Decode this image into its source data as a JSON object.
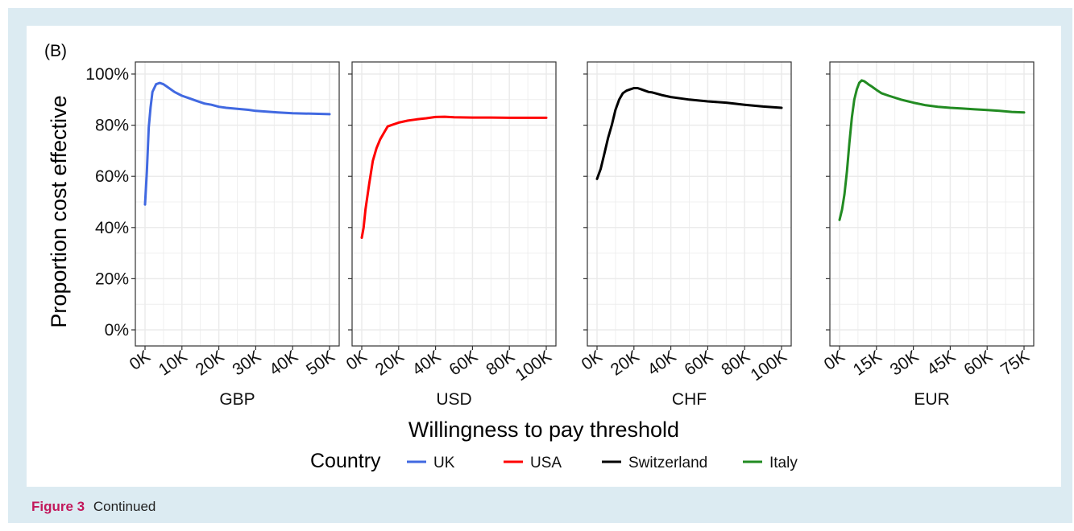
{
  "caption": {
    "label": "Figure 3",
    "text": "Continued"
  },
  "panel_tag": "(B)",
  "colors": {
    "UK": "#4169e1",
    "USA": "#ff0000",
    "Switzerland": "#000000",
    "Italy": "#228b22",
    "grid": "#ebebeb",
    "frame": "#333333",
    "figure_background": "#dcebf2"
  },
  "chart_data": {
    "type": "line",
    "ylabel": "Proportion cost effective",
    "xlabel": "Willingness to pay threshold",
    "ylim": [
      0,
      1
    ],
    "yticks": [
      0,
      0.2,
      0.4,
      0.6,
      0.8,
      1.0
    ],
    "ytick_labels": [
      "0%",
      "20%",
      "40%",
      "60%",
      "80%",
      "100%"
    ],
    "legend": {
      "title": "Country",
      "position": "bottom",
      "entries": [
        "UK",
        "USA",
        "Switzerland",
        "Italy"
      ]
    },
    "panels": [
      {
        "strip": "GBP",
        "series_name": "UK",
        "xlim": [
          0,
          50000
        ],
        "xticks": [
          0,
          10000,
          20000,
          30000,
          40000,
          50000
        ],
        "xtick_labels": [
          "0K",
          "10K",
          "20K",
          "30K",
          "40K",
          "50K"
        ],
        "x": [
          0,
          500,
          1000,
          1500,
          2000,
          3000,
          4000,
          5000,
          6000,
          8000,
          10000,
          12000,
          14000,
          16000,
          18000,
          20000,
          22000,
          25000,
          28000,
          30000,
          33000,
          36000,
          40000,
          45000,
          50000
        ],
        "y": [
          0.49,
          0.62,
          0.79,
          0.87,
          0.93,
          0.96,
          0.965,
          0.96,
          0.95,
          0.93,
          0.915,
          0.905,
          0.895,
          0.885,
          0.88,
          0.872,
          0.868,
          0.864,
          0.86,
          0.856,
          0.853,
          0.85,
          0.847,
          0.845,
          0.843
        ]
      },
      {
        "strip": "USD",
        "series_name": "USA",
        "xlim": [
          0,
          100000
        ],
        "xticks": [
          0,
          20000,
          40000,
          60000,
          80000,
          100000
        ],
        "xtick_labels": [
          "0K",
          "20K",
          "40K",
          "60K",
          "80K",
          "100K"
        ],
        "x": [
          0,
          1000,
          2000,
          4000,
          6000,
          8000,
          10000,
          12000,
          14000,
          16000,
          18000,
          20000,
          25000,
          30000,
          35000,
          40000,
          45000,
          50000,
          60000,
          70000,
          80000,
          90000,
          100000
        ],
        "y": [
          0.36,
          0.4,
          0.47,
          0.57,
          0.66,
          0.71,
          0.745,
          0.77,
          0.795,
          0.8,
          0.805,
          0.81,
          0.818,
          0.823,
          0.827,
          0.832,
          0.833,
          0.831,
          0.83,
          0.83,
          0.829,
          0.829,
          0.829
        ]
      },
      {
        "strip": "CHF",
        "series_name": "Switzerland",
        "xlim": [
          0,
          100000
        ],
        "xticks": [
          0,
          20000,
          40000,
          60000,
          80000,
          100000
        ],
        "xtick_labels": [
          "0K",
          "20K",
          "40K",
          "60K",
          "80K",
          "100K"
        ],
        "x": [
          0,
          2000,
          4000,
          6000,
          8000,
          10000,
          12000,
          14000,
          16000,
          18000,
          20000,
          22000,
          24000,
          26000,
          28000,
          30000,
          35000,
          40000,
          45000,
          50000,
          60000,
          70000,
          80000,
          90000,
          100000
        ],
        "y": [
          0.59,
          0.63,
          0.69,
          0.75,
          0.8,
          0.86,
          0.9,
          0.925,
          0.935,
          0.94,
          0.945,
          0.945,
          0.94,
          0.935,
          0.93,
          0.928,
          0.918,
          0.91,
          0.905,
          0.9,
          0.893,
          0.888,
          0.88,
          0.873,
          0.868
        ]
      },
      {
        "strip": "EUR",
        "series_name": "Italy",
        "xlim": [
          0,
          75000
        ],
        "xticks": [
          0,
          15000,
          30000,
          45000,
          60000,
          75000
        ],
        "xtick_labels": [
          "0K",
          "15K",
          "30K",
          "45K",
          "60K",
          "75K"
        ],
        "x": [
          0,
          1000,
          2000,
          3000,
          4000,
          5000,
          6000,
          7000,
          8000,
          9000,
          10000,
          11000,
          12000,
          13000,
          14000,
          15000,
          17000,
          20000,
          25000,
          30000,
          35000,
          40000,
          45000,
          50000,
          55000,
          60000,
          65000,
          70000,
          75000
        ],
        "y": [
          0.43,
          0.47,
          0.53,
          0.62,
          0.73,
          0.83,
          0.9,
          0.94,
          0.965,
          0.975,
          0.972,
          0.965,
          0.958,
          0.952,
          0.945,
          0.938,
          0.925,
          0.915,
          0.9,
          0.888,
          0.878,
          0.872,
          0.868,
          0.865,
          0.862,
          0.859,
          0.856,
          0.852,
          0.85
        ]
      }
    ]
  }
}
